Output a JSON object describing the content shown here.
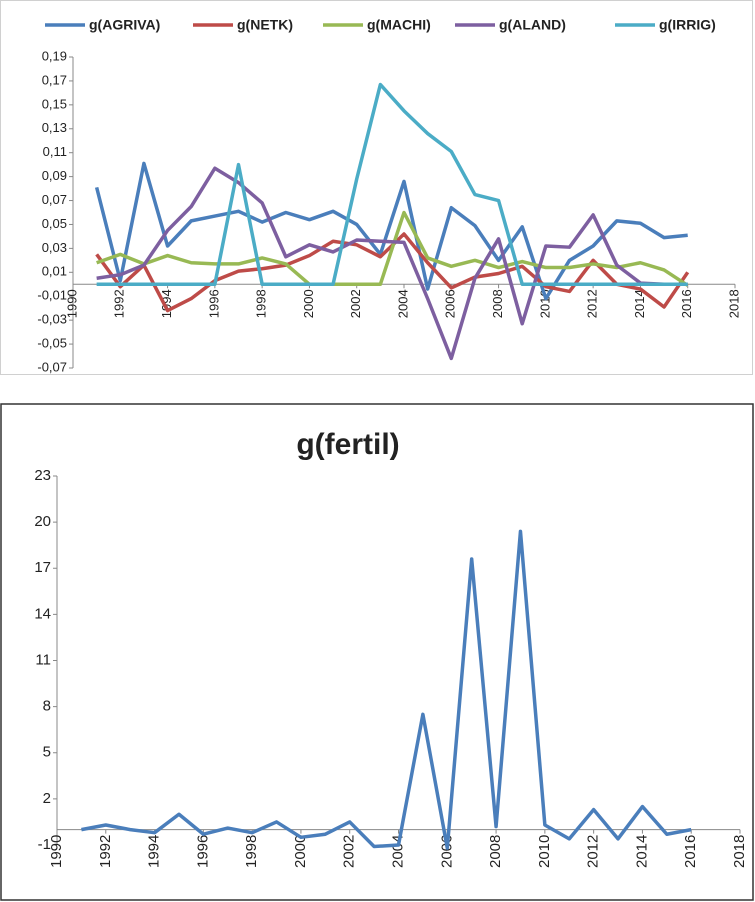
{
  "chart_data": [
    {
      "type": "line",
      "x": [
        1991,
        1992,
        1993,
        1994,
        1995,
        1996,
        1997,
        1998,
        1999,
        2000,
        2001,
        2002,
        2003,
        2004,
        2005,
        2006,
        2007,
        2008,
        2009,
        2010,
        2011,
        2012,
        2013,
        2014,
        2015,
        2016
      ],
      "series": [
        {
          "name": "g(AGRIVA)",
          "color": "#4a7ebb",
          "values": [
            0.081,
            0.003,
            0.101,
            0.032,
            0.053,
            0.057,
            0.061,
            0.052,
            0.06,
            0.054,
            0.061,
            0.05,
            0.025,
            0.086,
            -0.004,
            0.064,
            0.049,
            0.02,
            0.048,
            -0.012,
            0.02,
            0.032,
            0.053,
            0.051,
            0.039,
            0.041
          ]
        },
        {
          "name": "g(NETK)",
          "color": "#be4b48",
          "values": [
            0.025,
            -0.002,
            0.016,
            -0.022,
            -0.012,
            0.003,
            0.011,
            0.013,
            0.016,
            0.024,
            0.036,
            0.033,
            0.023,
            0.042,
            0.018,
            -0.003,
            0.006,
            0.009,
            0.015,
            -0.002,
            -0.006,
            0.02,
            0,
            -0.004,
            -0.019,
            0.01
          ]
        },
        {
          "name": "g(MACHI)",
          "color": "#98b954",
          "values": [
            0.018,
            0.025,
            0.017,
            0.024,
            0.018,
            0.017,
            0.017,
            0.022,
            0.017,
            0,
            0,
            0,
            0,
            0.06,
            0.022,
            0.015,
            0.02,
            0.014,
            0.019,
            0.014,
            0.014,
            0.017,
            0.014,
            0.018,
            0.012,
            -0.001
          ]
        },
        {
          "name": "g(ALAND)",
          "color": "#7d5fa0",
          "values": [
            0.005,
            0.008,
            0.016,
            0.045,
            0.065,
            0.097,
            0.085,
            0.068,
            0.023,
            0.033,
            0.027,
            0.037,
            0.036,
            0.035,
            -0.012,
            -0.062,
            0.005,
            0.038,
            -0.033,
            0.032,
            0.031,
            0.058,
            0.016,
            0.001,
            0,
            0
          ]
        },
        {
          "name": "g(IRRIG)",
          "color": "#4bacc6",
          "values": [
            0,
            0,
            0,
            0,
            0,
            0,
            0.1,
            0,
            0,
            0,
            0,
            0.088,
            0.167,
            0.145,
            0.126,
            0.111,
            0.075,
            0.07,
            0,
            0,
            0,
            0,
            0,
            0,
            0,
            0
          ]
        }
      ],
      "xlim": [
        1990,
        2018
      ],
      "xticks": [
        1990,
        1992,
        1994,
        1996,
        1998,
        2000,
        2002,
        2004,
        2006,
        2008,
        2010,
        2012,
        2014,
        2016,
        2018
      ],
      "ylim": [
        -0.07,
        0.19
      ],
      "yticks": [
        {
          "value": 0.19,
          "label": "0,19"
        },
        {
          "value": 0.17,
          "label": "0,17"
        },
        {
          "value": 0.15,
          "label": "0,15"
        },
        {
          "value": 0.13,
          "label": "0,13"
        },
        {
          "value": 0.11,
          "label": "0,11"
        },
        {
          "value": 0.09,
          "label": "0,09"
        },
        {
          "value": 0.07,
          "label": "0,07"
        },
        {
          "value": 0.05,
          "label": "0,05"
        },
        {
          "value": 0.03,
          "label": "0,03"
        },
        {
          "value": 0.01,
          "label": "0,01"
        },
        {
          "value": -0.01,
          "label": "-0,01"
        },
        {
          "value": -0.03,
          "label": "-0,03"
        },
        {
          "value": -0.05,
          "label": "-0,05"
        },
        {
          "value": -0.07,
          "label": "-0,07"
        }
      ],
      "legend": "top"
    },
    {
      "type": "line",
      "title": "g(fertil)",
      "x": [
        1991,
        1992,
        1993,
        1994,
        1995,
        1996,
        1997,
        1998,
        1999,
        2000,
        2001,
        2002,
        2003,
        2004,
        2005,
        2006,
        2007,
        2008,
        2009,
        2010,
        2011,
        2012,
        2013,
        2014,
        2015,
        2016
      ],
      "series": [
        {
          "name": "g(fertil)",
          "color": "#4a7ebb",
          "values": [
            0,
            0.3,
            0,
            -0.2,
            1,
            -0.3,
            0.1,
            -0.2,
            0.5,
            -0.5,
            -0.3,
            0.5,
            -1.1,
            -1,
            7.5,
            -1.2,
            17.6,
            0.2,
            19.4,
            0.3,
            -0.6,
            1.3,
            -0.6,
            1.5,
            -0.3,
            0
          ]
        }
      ],
      "xlim": [
        1990,
        2018
      ],
      "xticks": [
        1990,
        1992,
        1994,
        1996,
        1998,
        2000,
        2002,
        2004,
        2006,
        2008,
        2010,
        2012,
        2014,
        2016,
        2018
      ],
      "ylim": [
        -1,
        23
      ],
      "yticks": [
        23,
        20,
        17,
        14,
        11,
        8,
        5,
        2,
        -1
      ]
    }
  ]
}
